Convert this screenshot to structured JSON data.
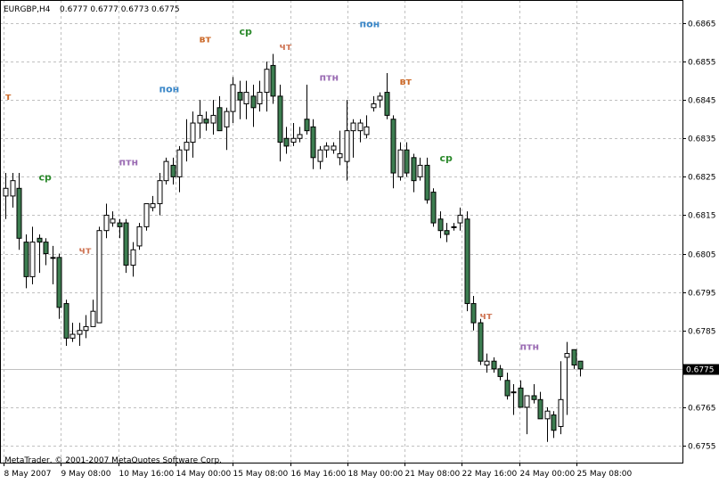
{
  "header": {
    "symbol": "EURGBP,H4",
    "ohlc": "0.6777 0.6777 0.6773 0.6775"
  },
  "footer": {
    "copyright": "MetaTrader, © 2001-2007 MetaQuotes Software Corp."
  },
  "current_price": "0.6775",
  "colors": {
    "background": "#ffffff",
    "grid": "#c0c0c0",
    "bull_body": "#ffffff",
    "bear_body": "#3c7d50",
    "wick": "#000000",
    "price_line": "#c0c0c0",
    "day_mon": "#3a87c8",
    "day_tue": "#cc6a2a",
    "day_wed": "#2d8a2d",
    "day_thu": "#d07858",
    "day_fri": "#9a6bb3"
  },
  "chart_data": {
    "type": "candlestick",
    "symbol": "EURGBP",
    "timeframe": "H4",
    "ylim": [
      0.6751,
      0.687
    ],
    "y_ticks": [
      "0.6865",
      "0.6855",
      "0.6845",
      "0.6835",
      "0.6825",
      "0.6815",
      "0.6805",
      "0.6795",
      "0.6785",
      "0.6775",
      "0.6765",
      "0.6755"
    ],
    "x_tick_labels": [
      "8 May 2007",
      "9 May 08:00",
      "10 May 16:00",
      "14 May 00:00",
      "15 May 08:00",
      "16 May 16:00",
      "18 May 00:00",
      "21 May 08:00",
      "22 May 16:00",
      "24 May 00:00",
      "25 May 08:00"
    ],
    "grid": true,
    "candles": [
      {
        "o": 0.682,
        "h": 0.6826,
        "l": 0.6814,
        "c": 0.6822
      },
      {
        "o": 0.682,
        "h": 0.6826,
        "l": 0.6817,
        "c": 0.6824
      },
      {
        "o": 0.6822,
        "h": 0.6826,
        "l": 0.6806,
        "c": 0.6809
      },
      {
        "o": 0.6808,
        "h": 0.681,
        "l": 0.6796,
        "c": 0.6799
      },
      {
        "o": 0.6799,
        "h": 0.6812,
        "l": 0.6797,
        "c": 0.6808
      },
      {
        "o": 0.6809,
        "h": 0.681,
        "l": 0.68,
        "c": 0.6808
      },
      {
        "o": 0.6808,
        "h": 0.6809,
        "l": 0.6802,
        "c": 0.6805
      },
      {
        "o": 0.6804,
        "h": 0.6807,
        "l": 0.6797,
        "c": 0.6804
      },
      {
        "o": 0.6804,
        "h": 0.6805,
        "l": 0.6788,
        "c": 0.6791
      },
      {
        "o": 0.6792,
        "h": 0.6793,
        "l": 0.6781,
        "c": 0.6783
      },
      {
        "o": 0.6783,
        "h": 0.6787,
        "l": 0.6782,
        "c": 0.6784
      },
      {
        "o": 0.6784,
        "h": 0.6787,
        "l": 0.6781,
        "c": 0.6785
      },
      {
        "o": 0.6785,
        "h": 0.6789,
        "l": 0.6783,
        "c": 0.6786
      },
      {
        "o": 0.6786,
        "h": 0.6793,
        "l": 0.6786,
        "c": 0.679
      },
      {
        "o": 0.6787,
        "h": 0.6812,
        "l": 0.6787,
        "c": 0.6811
      },
      {
        "o": 0.6811,
        "h": 0.6818,
        "l": 0.6809,
        "c": 0.6815
      },
      {
        "o": 0.6813,
        "h": 0.6816,
        "l": 0.6812,
        "c": 0.6814
      },
      {
        "o": 0.6813,
        "h": 0.6814,
        "l": 0.6809,
        "c": 0.6812
      },
      {
        "o": 0.6813,
        "h": 0.6814,
        "l": 0.68,
        "c": 0.6802
      },
      {
        "o": 0.6802,
        "h": 0.6808,
        "l": 0.6799,
        "c": 0.6806
      },
      {
        "o": 0.6807,
        "h": 0.6813,
        "l": 0.6806,
        "c": 0.6812
      },
      {
        "o": 0.6812,
        "h": 0.6818,
        "l": 0.6811,
        "c": 0.6818
      },
      {
        "o": 0.6817,
        "h": 0.682,
        "l": 0.6816,
        "c": 0.6818
      },
      {
        "o": 0.6818,
        "h": 0.6826,
        "l": 0.6815,
        "c": 0.6824
      },
      {
        "o": 0.6824,
        "h": 0.683,
        "l": 0.6823,
        "c": 0.6829
      },
      {
        "o": 0.6828,
        "h": 0.683,
        "l": 0.6823,
        "c": 0.6825
      },
      {
        "o": 0.6825,
        "h": 0.6833,
        "l": 0.6821,
        "c": 0.6832
      },
      {
        "o": 0.6832,
        "h": 0.684,
        "l": 0.6829,
        "c": 0.6834
      },
      {
        "o": 0.6834,
        "h": 0.6842,
        "l": 0.683,
        "c": 0.6839
      },
      {
        "o": 0.6839,
        "h": 0.6845,
        "l": 0.6835,
        "c": 0.6841
      },
      {
        "o": 0.684,
        "h": 0.6842,
        "l": 0.6837,
        "c": 0.6839
      },
      {
        "o": 0.6839,
        "h": 0.6845,
        "l": 0.6836,
        "c": 0.6841
      },
      {
        "o": 0.6843,
        "h": 0.6846,
        "l": 0.6837,
        "c": 0.6837
      },
      {
        "o": 0.6838,
        "h": 0.6843,
        "l": 0.6832,
        "c": 0.6842
      },
      {
        "o": 0.6842,
        "h": 0.6851,
        "l": 0.6839,
        "c": 0.6849
      },
      {
        "o": 0.6847,
        "h": 0.685,
        "l": 0.684,
        "c": 0.6845
      },
      {
        "o": 0.6844,
        "h": 0.685,
        "l": 0.684,
        "c": 0.6847
      },
      {
        "o": 0.6846,
        "h": 0.6849,
        "l": 0.6838,
        "c": 0.6843
      },
      {
        "o": 0.6844,
        "h": 0.685,
        "l": 0.6842,
        "c": 0.6847
      },
      {
        "o": 0.6847,
        "h": 0.6855,
        "l": 0.6842,
        "c": 0.6853
      },
      {
        "o": 0.6854,
        "h": 0.6857,
        "l": 0.6844,
        "c": 0.6846
      },
      {
        "o": 0.6846,
        "h": 0.6849,
        "l": 0.6829,
        "c": 0.6834
      },
      {
        "o": 0.6835,
        "h": 0.6838,
        "l": 0.6831,
        "c": 0.6833
      },
      {
        "o": 0.6834,
        "h": 0.6839,
        "l": 0.6833,
        "c": 0.6835
      },
      {
        "o": 0.6835,
        "h": 0.6838,
        "l": 0.6834,
        "c": 0.6836
      },
      {
        "o": 0.684,
        "h": 0.6849,
        "l": 0.6836,
        "c": 0.6837
      },
      {
        "o": 0.6838,
        "h": 0.684,
        "l": 0.6827,
        "c": 0.683
      },
      {
        "o": 0.6829,
        "h": 0.6833,
        "l": 0.6827,
        "c": 0.6832
      },
      {
        "o": 0.6832,
        "h": 0.6834,
        "l": 0.683,
        "c": 0.6833
      },
      {
        "o": 0.6832,
        "h": 0.6834,
        "l": 0.6831,
        "c": 0.6833
      },
      {
        "o": 0.683,
        "h": 0.6837,
        "l": 0.6828,
        "c": 0.6831
      },
      {
        "o": 0.6829,
        "h": 0.6845,
        "l": 0.6824,
        "c": 0.6837
      },
      {
        "o": 0.6837,
        "h": 0.684,
        "l": 0.683,
        "c": 0.6839
      },
      {
        "o": 0.6837,
        "h": 0.684,
        "l": 0.6834,
        "c": 0.6839
      },
      {
        "o": 0.6836,
        "h": 0.6841,
        "l": 0.6835,
        "c": 0.6838
      },
      {
        "o": 0.6843,
        "h": 0.6846,
        "l": 0.6842,
        "c": 0.6844
      },
      {
        "o": 0.6845,
        "h": 0.6847,
        "l": 0.6843,
        "c": 0.6846
      },
      {
        "o": 0.6847,
        "h": 0.6852,
        "l": 0.684,
        "c": 0.6841
      },
      {
        "o": 0.684,
        "h": 0.6841,
        "l": 0.6822,
        "c": 0.6826
      },
      {
        "o": 0.6825,
        "h": 0.6834,
        "l": 0.6824,
        "c": 0.6832
      },
      {
        "o": 0.6832,
        "h": 0.6834,
        "l": 0.6825,
        "c": 0.6826
      },
      {
        "o": 0.683,
        "h": 0.6831,
        "l": 0.6821,
        "c": 0.6824
      },
      {
        "o": 0.6825,
        "h": 0.683,
        "l": 0.6824,
        "c": 0.6828
      },
      {
        "o": 0.6828,
        "h": 0.683,
        "l": 0.6818,
        "c": 0.6819
      },
      {
        "o": 0.6821,
        "h": 0.6822,
        "l": 0.6812,
        "c": 0.6813
      },
      {
        "o": 0.6814,
        "h": 0.6816,
        "l": 0.6809,
        "c": 0.6811
      },
      {
        "o": 0.6811,
        "h": 0.6813,
        "l": 0.6808,
        "c": 0.681
      },
      {
        "o": 0.6812,
        "h": 0.6813,
        "l": 0.6811,
        "c": 0.6812
      },
      {
        "o": 0.6813,
        "h": 0.6817,
        "l": 0.6811,
        "c": 0.6815
      },
      {
        "o": 0.6814,
        "h": 0.6816,
        "l": 0.679,
        "c": 0.6792
      },
      {
        "o": 0.6792,
        "h": 0.6794,
        "l": 0.6785,
        "c": 0.6787
      },
      {
        "o": 0.6787,
        "h": 0.6788,
        "l": 0.6776,
        "c": 0.6777
      },
      {
        "o": 0.6776,
        "h": 0.6779,
        "l": 0.6774,
        "c": 0.6777
      },
      {
        "o": 0.6777,
        "h": 0.6778,
        "l": 0.6774,
        "c": 0.6775
      },
      {
        "o": 0.6775,
        "h": 0.6776,
        "l": 0.6772,
        "c": 0.6773
      },
      {
        "o": 0.6772,
        "h": 0.6774,
        "l": 0.6767,
        "c": 0.6768
      },
      {
        "o": 0.6769,
        "h": 0.6771,
        "l": 0.6763,
        "c": 0.6769
      },
      {
        "o": 0.677,
        "h": 0.6772,
        "l": 0.6765,
        "c": 0.6765
      },
      {
        "o": 0.6765,
        "h": 0.6768,
        "l": 0.6758,
        "c": 0.6768
      },
      {
        "o": 0.6768,
        "h": 0.6771,
        "l": 0.6766,
        "c": 0.6767
      },
      {
        "o": 0.6767,
        "h": 0.6769,
        "l": 0.6762,
        "c": 0.6762
      },
      {
        "o": 0.6762,
        "h": 0.6765,
        "l": 0.6756,
        "c": 0.6764
      },
      {
        "o": 0.6763,
        "h": 0.6764,
        "l": 0.6757,
        "c": 0.6759
      },
      {
        "o": 0.676,
        "h": 0.6777,
        "l": 0.6758,
        "c": 0.6767
      },
      {
        "o": 0.6778,
        "h": 0.6782,
        "l": 0.6763,
        "c": 0.6779
      },
      {
        "o": 0.678,
        "h": 0.678,
        "l": 0.6775,
        "c": 0.6776
      },
      {
        "o": 0.6777,
        "h": 0.6777,
        "l": 0.6773,
        "c": 0.6775
      }
    ],
    "day_labels": [
      {
        "text": "т",
        "day": "tue",
        "bar": 0,
        "y": 0.6845
      },
      {
        "text": "ср",
        "day": "wed",
        "bar": 5,
        "y": 0.6824
      },
      {
        "text": "чт",
        "day": "thu",
        "bar": 11,
        "y": 0.6805
      },
      {
        "text": "птн",
        "day": "fri",
        "bar": 17,
        "y": 0.6828
      },
      {
        "text": "пон",
        "day": "mon",
        "bar": 23,
        "y": 0.6847
      },
      {
        "text": "вт",
        "day": "tue",
        "bar": 29,
        "y": 0.686
      },
      {
        "text": "ср",
        "day": "wed",
        "bar": 35,
        "y": 0.6862
      },
      {
        "text": "чт",
        "day": "thu",
        "bar": 41,
        "y": 0.6858
      },
      {
        "text": "птн",
        "day": "fri",
        "bar": 47,
        "y": 0.685
      },
      {
        "text": "пон",
        "day": "mon",
        "bar": 53,
        "y": 0.6864
      },
      {
        "text": "вт",
        "day": "tue",
        "bar": 59,
        "y": 0.6849
      },
      {
        "text": "ср",
        "day": "wed",
        "bar": 65,
        "y": 0.6829
      },
      {
        "text": "чт",
        "day": "thu",
        "bar": 71,
        "y": 0.6788
      },
      {
        "text": "птн",
        "day": "fri",
        "bar": 77,
        "y": 0.678
      }
    ]
  }
}
